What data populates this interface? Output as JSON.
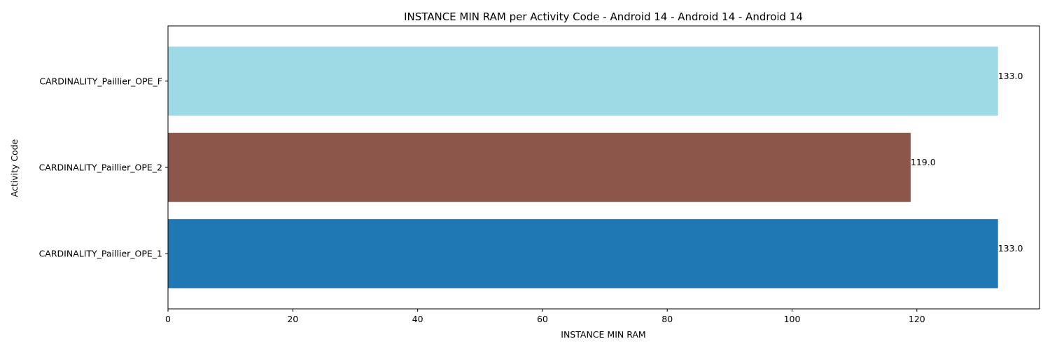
{
  "chart_data": {
    "type": "bar",
    "orientation": "horizontal",
    "title": "INSTANCE MIN RAM per Activity Code - Android 14 - Android 14 - Android 14",
    "xlabel": "INSTANCE MIN RAM",
    "ylabel": "Activity Code",
    "categories": [
      "CARDINALITY_Paillier_OPE_1",
      "CARDINALITY_Paillier_OPE_2",
      "CARDINALITY_Paillier_OPE_F"
    ],
    "values": [
      133.0,
      119.0,
      133.0
    ],
    "value_labels": [
      "133.0",
      "119.0",
      "133.0"
    ],
    "colors": [
      "#1f77b4",
      "#8c564b",
      "#9edae5"
    ],
    "xlim": [
      0,
      139.65
    ],
    "xticks": [
      0,
      20,
      40,
      60,
      80,
      100,
      120
    ],
    "grid": false,
    "legend": "none"
  }
}
